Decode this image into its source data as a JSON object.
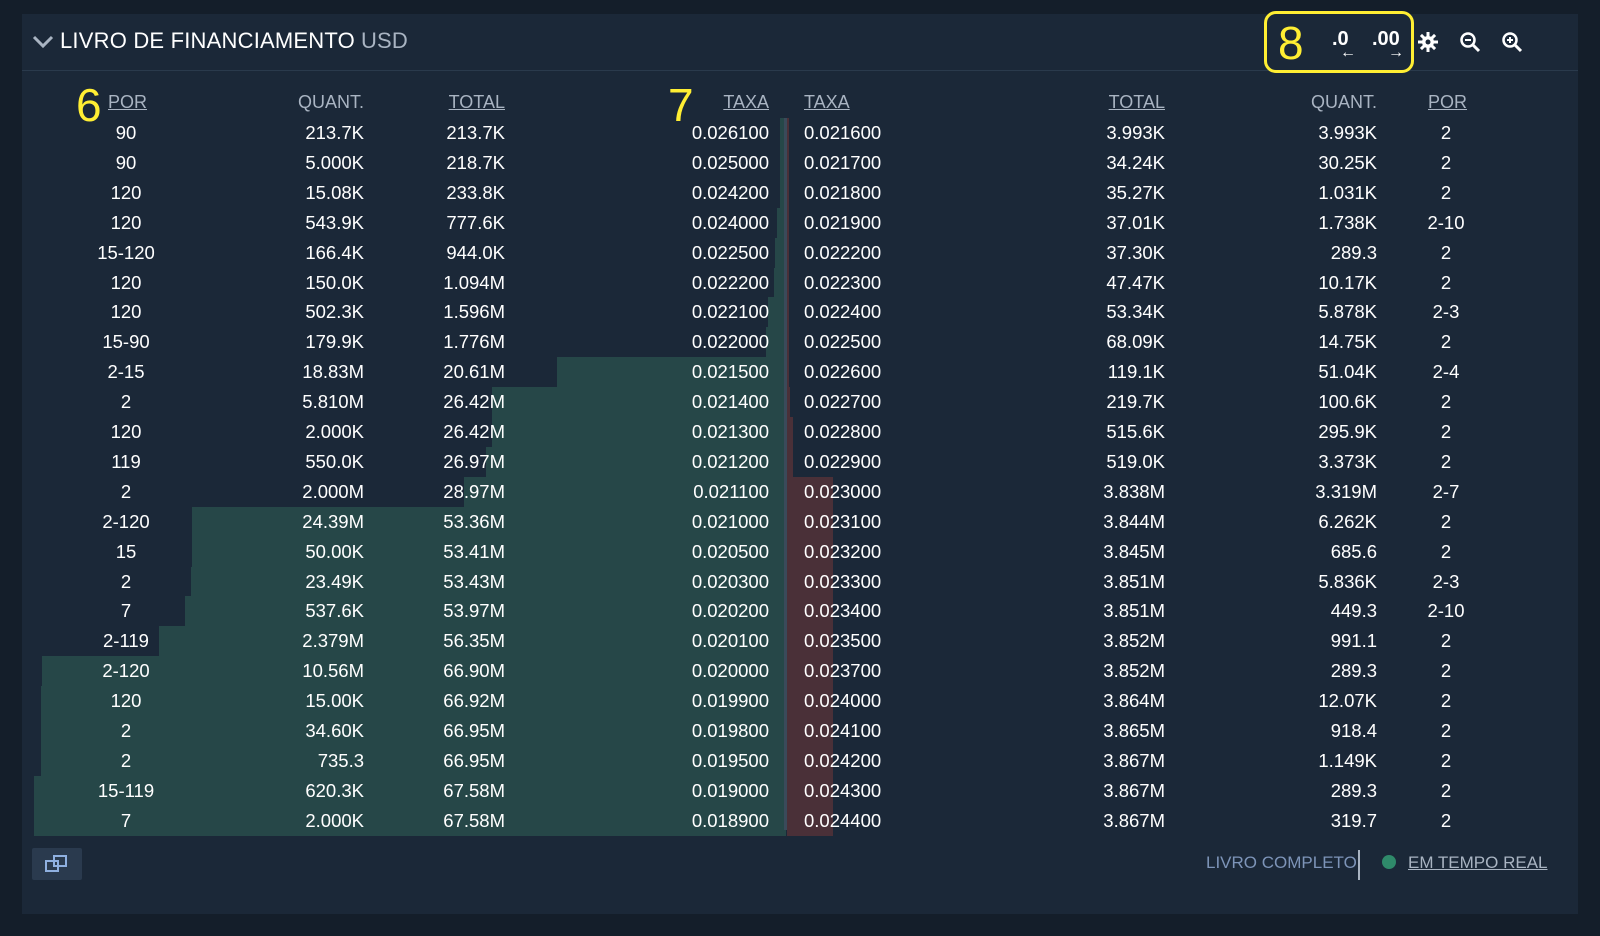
{
  "header": {
    "title": "LIVRO DE FINANCIAMENTO",
    "currency": "USD",
    "precision_less": ".0",
    "precision_more": ".00",
    "icons": [
      "chevron-down-icon",
      "gear-icon",
      "zoom-out-icon",
      "zoom-in-icon"
    ]
  },
  "annotations": {
    "a6": "6",
    "a7": "7",
    "a8": "8"
  },
  "columns": {
    "bid_count": "POR",
    "bid_amount": "QUANT.",
    "bid_total": "TOTAL",
    "bid_rate": "TAXA",
    "ask_rate": "TAXA",
    "ask_total": "TOTAL",
    "ask_amount": "QUANT.",
    "ask_count": "POR"
  },
  "rows": [
    {
      "bp": "90",
      "ba": "213.7K",
      "bt": "213.7K",
      "br": "0.026100",
      "ar": "0.021600",
      "at": "3.993K",
      "aa": "3.993K",
      "ap": "2"
    },
    {
      "bp": "90",
      "ba": "5.000K",
      "bt": "218.7K",
      "br": "0.025000",
      "ar": "0.021700",
      "at": "34.24K",
      "aa": "30.25K",
      "ap": "2"
    },
    {
      "bp": "120",
      "ba": "15.08K",
      "bt": "233.8K",
      "br": "0.024200",
      "ar": "0.021800",
      "at": "35.27K",
      "aa": "1.031K",
      "ap": "2"
    },
    {
      "bp": "120",
      "ba": "543.9K",
      "bt": "777.6K",
      "br": "0.024000",
      "ar": "0.021900",
      "at": "37.01K",
      "aa": "1.738K",
      "ap": "2-10"
    },
    {
      "bp": "15-120",
      "ba": "166.4K",
      "bt": "944.0K",
      "br": "0.022500",
      "ar": "0.022200",
      "at": "37.30K",
      "aa": "289.3",
      "ap": "2"
    },
    {
      "bp": "120",
      "ba": "150.0K",
      "bt": "1.094M",
      "br": "0.022200",
      "ar": "0.022300",
      "at": "47.47K",
      "aa": "10.17K",
      "ap": "2"
    },
    {
      "bp": "120",
      "ba": "502.3K",
      "bt": "1.596M",
      "br": "0.022100",
      "ar": "0.022400",
      "at": "53.34K",
      "aa": "5.878K",
      "ap": "2-3"
    },
    {
      "bp": "15-90",
      "ba": "179.9K",
      "bt": "1.776M",
      "br": "0.022000",
      "ar": "0.022500",
      "at": "68.09K",
      "aa": "14.75K",
      "ap": "2"
    },
    {
      "bp": "2-15",
      "ba": "18.83M",
      "bt": "20.61M",
      "br": "0.021500",
      "ar": "0.022600",
      "at": "119.1K",
      "aa": "51.04K",
      "ap": "2-4"
    },
    {
      "bp": "2",
      "ba": "5.810M",
      "bt": "26.42M",
      "br": "0.021400",
      "ar": "0.022700",
      "at": "219.7K",
      "aa": "100.6K",
      "ap": "2"
    },
    {
      "bp": "120",
      "ba": "2.000K",
      "bt": "26.42M",
      "br": "0.021300",
      "ar": "0.022800",
      "at": "515.6K",
      "aa": "295.9K",
      "ap": "2"
    },
    {
      "bp": "119",
      "ba": "550.0K",
      "bt": "26.97M",
      "br": "0.021200",
      "ar": "0.022900",
      "at": "519.0K",
      "aa": "3.373K",
      "ap": "2"
    },
    {
      "bp": "2",
      "ba": "2.000M",
      "bt": "28.97M",
      "br": "0.021100",
      "ar": "0.023000",
      "at": "3.838M",
      "aa": "3.319M",
      "ap": "2-7"
    },
    {
      "bp": "2-120",
      "ba": "24.39M",
      "bt": "53.36M",
      "br": "0.021000",
      "ar": "0.023100",
      "at": "3.844M",
      "aa": "6.262K",
      "ap": "2"
    },
    {
      "bp": "15",
      "ba": "50.00K",
      "bt": "53.41M",
      "br": "0.020500",
      "ar": "0.023200",
      "at": "3.845M",
      "aa": "685.6",
      "ap": "2"
    },
    {
      "bp": "2",
      "ba": "23.49K",
      "bt": "53.43M",
      "br": "0.020300",
      "ar": "0.023300",
      "at": "3.851M",
      "aa": "5.836K",
      "ap": "2-3"
    },
    {
      "bp": "7",
      "ba": "537.6K",
      "bt": "53.97M",
      "br": "0.020200",
      "ar": "0.023400",
      "at": "3.851M",
      "aa": "449.3",
      "ap": "2-10"
    },
    {
      "bp": "2-119",
      "ba": "2.379M",
      "bt": "56.35M",
      "br": "0.020100",
      "ar": "0.023500",
      "at": "3.852M",
      "aa": "991.1",
      "ap": "2"
    },
    {
      "bp": "2-120",
      "ba": "10.56M",
      "bt": "66.90M",
      "br": "0.020000",
      "ar": "0.023700",
      "at": "3.852M",
      "aa": "289.3",
      "ap": "2"
    },
    {
      "bp": "120",
      "ba": "15.00K",
      "bt": "66.92M",
      "br": "0.019900",
      "ar": "0.024000",
      "at": "3.864M",
      "aa": "12.07K",
      "ap": "2"
    },
    {
      "bp": "2",
      "ba": "34.60K",
      "bt": "66.95M",
      "br": "0.019800",
      "ar": "0.024100",
      "at": "3.865M",
      "aa": "918.4",
      "ap": "2"
    },
    {
      "bp": "2",
      "ba": "735.3",
      "bt": "66.95M",
      "br": "0.019500",
      "ar": "0.024200",
      "at": "3.867M",
      "aa": "1.149K",
      "ap": "2"
    },
    {
      "bp": "15-119",
      "ba": "620.3K",
      "bt": "67.58M",
      "br": "0.019000",
      "ar": "0.024300",
      "at": "3.867M",
      "aa": "289.3",
      "ap": "2"
    },
    {
      "bp": "7",
      "ba": "2.000K",
      "bt": "67.58M",
      "br": "0.018900",
      "ar": "0.024400",
      "at": "3.867M",
      "aa": "319.7",
      "ap": "2"
    }
  ],
  "depth": {
    "bid_max_total": 67.58,
    "ask_max_total": 3.867,
    "bid_colors": "#264748",
    "ask_colors": "#4a3038"
  },
  "footer": {
    "full_book": "LIVRO COMPLETO",
    "live": "EM TEMPO REAL",
    "live_color": "#2f8a6a"
  }
}
